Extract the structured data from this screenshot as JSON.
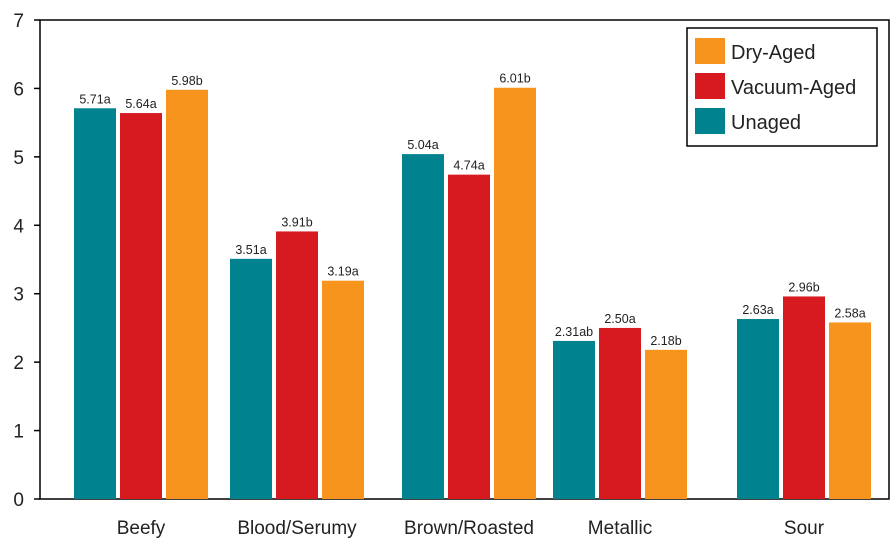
{
  "chart_data": {
    "type": "bar",
    "categories": [
      "Beefy",
      "Blood/Serumy",
      "Brown/Roasted",
      "Metallic",
      "Sour"
    ],
    "series": [
      {
        "name": "Unaged",
        "color": "#00838F",
        "values": [
          5.71,
          3.51,
          5.04,
          2.31,
          2.63
        ],
        "labels": [
          "5.71a",
          "3.51a",
          "5.04a",
          "2.31ab",
          "2.63a"
        ]
      },
      {
        "name": "Vacuum-Aged",
        "color": "#D71920",
        "values": [
          5.64,
          3.91,
          4.74,
          2.5,
          2.96
        ],
        "labels": [
          "5.64a",
          "3.91b",
          "4.74a",
          "2.50a",
          "2.96b"
        ]
      },
      {
        "name": "Dry-Aged",
        "color": "#F7941D",
        "values": [
          5.98,
          3.19,
          6.01,
          2.18,
          2.58
        ],
        "labels": [
          "5.98b",
          "3.19a",
          "6.01b",
          "2.18b",
          "2.58a"
        ]
      }
    ],
    "title": "",
    "xlabel": "",
    "ylabel": "",
    "ylim": [
      0,
      7
    ],
    "yticks": [
      "0",
      "1",
      "2",
      "3",
      "4",
      "5",
      "6",
      "7"
    ],
    "grid": false,
    "legend": {
      "placement": "top-right",
      "order": [
        "Dry-Aged",
        "Vacuum-Aged",
        "Unaged"
      ]
    }
  }
}
